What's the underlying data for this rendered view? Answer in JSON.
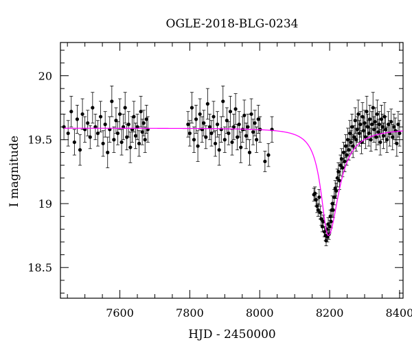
{
  "chart_data": {
    "type": "scatter",
    "title": "OGLE-2018-BLG-0234",
    "xlabel": "HJD - 2450000",
    "ylabel": "I magnitude",
    "xlim": [
      7430,
      8410
    ],
    "ylim": [
      20.26,
      18.26
    ],
    "y_inverted": true,
    "x_ticks": [
      7600,
      7800,
      8000,
      8200,
      8400
    ],
    "y_ticks": [
      18.5,
      19,
      19.5,
      20
    ],
    "y_tick_labels": [
      "18.5",
      "19",
      "19.5",
      "20"
    ],
    "grid": false,
    "legend": "none",
    "colors": {
      "data": "#000000",
      "model": "#ff00ff"
    },
    "series": [
      {
        "kind": "data_with_errorbars",
        "points": [
          [
            7440,
            19.6,
            0.1
          ],
          [
            7452,
            19.55,
            0.1
          ],
          [
            7461,
            19.72,
            0.12
          ],
          [
            7470,
            19.48,
            0.1
          ],
          [
            7478,
            19.66,
            0.11
          ],
          [
            7486,
            19.42,
            0.12
          ],
          [
            7493,
            19.7,
            0.12
          ],
          [
            7500,
            19.58,
            0.1
          ],
          [
            7508,
            19.63,
            0.1
          ],
          [
            7515,
            19.52,
            0.09
          ],
          [
            7522,
            19.75,
            0.12
          ],
          [
            7530,
            19.6,
            0.1
          ],
          [
            7537,
            19.55,
            0.1
          ],
          [
            7545,
            19.68,
            0.12
          ],
          [
            7552,
            19.47,
            0.1
          ],
          [
            7558,
            19.62,
            0.1
          ],
          [
            7565,
            19.4,
            0.12
          ],
          [
            7571,
            19.58,
            0.1
          ],
          [
            7577,
            19.8,
            0.12
          ],
          [
            7583,
            19.5,
            0.1
          ],
          [
            7589,
            19.65,
            0.1
          ],
          [
            7594,
            19.55,
            0.09
          ],
          [
            7600,
            19.7,
            0.12
          ],
          [
            7605,
            19.48,
            0.1
          ],
          [
            7610,
            19.6,
            0.1
          ],
          [
            7615,
            19.75,
            0.12
          ],
          [
            7620,
            19.52,
            0.1
          ],
          [
            7625,
            19.62,
            0.1
          ],
          [
            7630,
            19.44,
            0.12
          ],
          [
            7635,
            19.58,
            0.1
          ],
          [
            7640,
            19.68,
            0.12
          ],
          [
            7645,
            19.53,
            0.1
          ],
          [
            7650,
            19.6,
            0.1
          ],
          [
            7655,
            19.47,
            0.1
          ],
          [
            7660,
            19.72,
            0.12
          ],
          [
            7664,
            19.56,
            0.1
          ],
          [
            7668,
            19.63,
            0.1
          ],
          [
            7672,
            19.5,
            0.1
          ],
          [
            7676,
            19.66,
            0.11
          ],
          [
            7680,
            19.58,
            0.1
          ],
          [
            7795,
            19.62,
            0.1
          ],
          [
            7800,
            19.55,
            0.1
          ],
          [
            7806,
            19.75,
            0.12
          ],
          [
            7812,
            19.5,
            0.1
          ],
          [
            7818,
            19.66,
            0.11
          ],
          [
            7823,
            19.45,
            0.12
          ],
          [
            7829,
            19.7,
            0.12
          ],
          [
            7835,
            19.58,
            0.1
          ],
          [
            7840,
            19.63,
            0.1
          ],
          [
            7846,
            19.52,
            0.09
          ],
          [
            7851,
            19.78,
            0.12
          ],
          [
            7857,
            19.6,
            0.1
          ],
          [
            7862,
            19.55,
            0.1
          ],
          [
            7868,
            19.68,
            0.12
          ],
          [
            7873,
            19.47,
            0.1
          ],
          [
            7879,
            19.62,
            0.1
          ],
          [
            7884,
            19.42,
            0.12
          ],
          [
            7890,
            19.58,
            0.1
          ],
          [
            7895,
            19.8,
            0.12
          ],
          [
            7900,
            19.5,
            0.1
          ],
          [
            7906,
            19.65,
            0.1
          ],
          [
            7911,
            19.55,
            0.09
          ],
          [
            7916,
            19.72,
            0.12
          ],
          [
            7921,
            19.48,
            0.1
          ],
          [
            7926,
            19.6,
            0.1
          ],
          [
            7931,
            19.74,
            0.12
          ],
          [
            7936,
            19.52,
            0.1
          ],
          [
            7941,
            19.62,
            0.1
          ],
          [
            7946,
            19.44,
            0.12
          ],
          [
            7951,
            19.58,
            0.1
          ],
          [
            7956,
            19.69,
            0.12
          ],
          [
            7961,
            19.53,
            0.1
          ],
          [
            7966,
            19.6,
            0.1
          ],
          [
            7971,
            19.4,
            0.1
          ],
          [
            7976,
            19.7,
            0.12
          ],
          [
            7981,
            19.56,
            0.1
          ],
          [
            7986,
            19.63,
            0.1
          ],
          [
            7991,
            19.5,
            0.1
          ],
          [
            7996,
            19.66,
            0.11
          ],
          [
            8001,
            19.58,
            0.1
          ],
          [
            8015,
            19.33,
            0.08
          ],
          [
            8025,
            19.38,
            0.09
          ],
          [
            8035,
            19.58,
            0.1
          ],
          [
            8155,
            19.07,
            0.05
          ],
          [
            8158,
            19.08,
            0.05
          ],
          [
            8161,
            19.03,
            0.05
          ],
          [
            8164,
            18.98,
            0.05
          ],
          [
            8167,
            18.95,
            0.05
          ],
          [
            8170,
            19.05,
            0.06
          ],
          [
            8173,
            18.93,
            0.05
          ],
          [
            8176,
            18.88,
            0.05
          ],
          [
            8179,
            18.82,
            0.04
          ],
          [
            8182,
            18.86,
            0.05
          ],
          [
            8185,
            18.78,
            0.04
          ],
          [
            8188,
            18.75,
            0.04
          ],
          [
            8190,
            18.71,
            0.04
          ],
          [
            8192,
            18.8,
            0.04
          ],
          [
            8194,
            18.74,
            0.04
          ],
          [
            8196,
            18.84,
            0.05
          ],
          [
            8198,
            18.76,
            0.04
          ],
          [
            8200,
            18.82,
            0.05
          ],
          [
            8202,
            18.9,
            0.05
          ],
          [
            8204,
            18.86,
            0.05
          ],
          [
            8206,
            18.95,
            0.05
          ],
          [
            8208,
            19.0,
            0.06
          ],
          [
            8210,
            18.95,
            0.06
          ],
          [
            8213,
            19.05,
            0.06
          ],
          [
            8216,
            19.12,
            0.06
          ],
          [
            8219,
            19.1,
            0.06
          ],
          [
            8222,
            19.2,
            0.07
          ],
          [
            8225,
            19.25,
            0.07
          ],
          [
            8228,
            19.18,
            0.07
          ],
          [
            8231,
            19.3,
            0.08
          ],
          [
            8234,
            19.35,
            0.08
          ],
          [
            8237,
            19.28,
            0.07
          ],
          [
            8240,
            19.4,
            0.08
          ],
          [
            8243,
            19.33,
            0.08
          ],
          [
            8246,
            19.45,
            0.09
          ],
          [
            8249,
            19.38,
            0.08
          ],
          [
            8252,
            19.5,
            0.09
          ],
          [
            8255,
            19.42,
            0.08
          ],
          [
            8258,
            19.55,
            0.1
          ],
          [
            8261,
            19.48,
            0.09
          ],
          [
            8264,
            19.6,
            0.1
          ],
          [
            8267,
            19.45,
            0.09
          ],
          [
            8270,
            19.52,
            0.09
          ],
          [
            8273,
            19.65,
            0.1
          ],
          [
            8276,
            19.5,
            0.09
          ],
          [
            8279,
            19.58,
            0.1
          ],
          [
            8282,
            19.7,
            0.11
          ],
          [
            8285,
            19.55,
            0.1
          ],
          [
            8288,
            19.62,
            0.1
          ],
          [
            8291,
            19.48,
            0.09
          ],
          [
            8294,
            19.68,
            0.11
          ],
          [
            8297,
            19.57,
            0.1
          ],
          [
            8300,
            19.63,
            0.1
          ],
          [
            8303,
            19.52,
            0.09
          ],
          [
            8306,
            19.72,
            0.12
          ],
          [
            8309,
            19.6,
            0.1
          ],
          [
            8312,
            19.55,
            0.1
          ],
          [
            8315,
            19.66,
            0.11
          ],
          [
            8318,
            19.5,
            0.09
          ],
          [
            8321,
            19.62,
            0.1
          ],
          [
            8324,
            19.75,
            0.12
          ],
          [
            8327,
            19.58,
            0.1
          ],
          [
            8330,
            19.64,
            0.11
          ],
          [
            8333,
            19.52,
            0.1
          ],
          [
            8336,
            19.7,
            0.11
          ],
          [
            8339,
            19.56,
            0.1
          ],
          [
            8342,
            19.62,
            0.1
          ],
          [
            8345,
            19.48,
            0.1
          ],
          [
            8348,
            19.66,
            0.11
          ],
          [
            8351,
            19.6,
            0.1
          ],
          [
            8354,
            19.53,
            0.1
          ],
          [
            8357,
            19.68,
            0.11
          ],
          [
            8360,
            19.58,
            0.1
          ],
          [
            8364,
            19.5,
            0.1
          ],
          [
            8368,
            19.62,
            0.1
          ],
          [
            8372,
            19.55,
            0.1
          ],
          [
            8376,
            19.64,
            0.1
          ],
          [
            8380,
            19.52,
            0.1
          ],
          [
            8384,
            19.6,
            0.1
          ],
          [
            8388,
            19.57,
            0.1
          ],
          [
            8392,
            19.47,
            0.1
          ],
          [
            8396,
            19.62,
            0.1
          ],
          [
            8400,
            19.55,
            0.1
          ]
        ]
      },
      {
        "kind": "model_curve",
        "baseline_mag": 19.59,
        "peak_mag": 18.75,
        "peak_hjd": 8196
      }
    ]
  }
}
